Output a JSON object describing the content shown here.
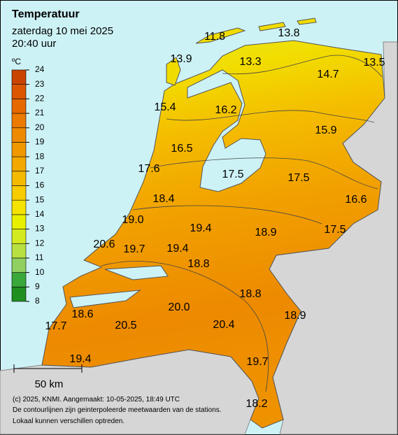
{
  "header": {
    "title": "Temperatuur",
    "date": "zaterdag 10 mei 2025",
    "time": "20:40 uur"
  },
  "legend": {
    "unit": "ºC",
    "ticks": [
      8,
      9,
      10,
      11,
      12,
      13,
      14,
      15,
      16,
      17,
      18,
      19,
      20,
      21,
      22,
      23,
      24
    ],
    "colors": [
      "#1f8f1f",
      "#3aa83a",
      "#8fd060",
      "#b8e040",
      "#d4ea20",
      "#e8f000",
      "#f4e200",
      "#f6cc00",
      "#f4ba00",
      "#f2a800",
      "#f09800",
      "#ee8a00",
      "#eb7a00",
      "#e66800",
      "#dc5600",
      "#c84400"
    ]
  },
  "stations": [
    "13.8",
    "11.8",
    "13.9",
    "13.3",
    "13.5",
    "14.7",
    "15.4",
    "16.2",
    "15.9",
    "16.5",
    "17.6",
    "17.5",
    "17.5",
    "16.6",
    "18.4",
    "19.0",
    "19.4",
    "18.9",
    "17.5",
    "20.6",
    "19.7",
    "19.4",
    "18.8",
    "18.8",
    "20.0",
    "18.9",
    "18.6",
    "17.7",
    "20.5",
    "20.4",
    "19.4",
    "19.7",
    "18.2"
  ],
  "scale": "50 km",
  "footer": [
    "(c) 2025, KNMI. Aangemaakt: 10-05-2025, 18:49 UTC",
    "De contourlijnen zijn geinterpoleerde meetwaarden van de stations.",
    "Lokaal kunnen verschillen optreden."
  ]
}
